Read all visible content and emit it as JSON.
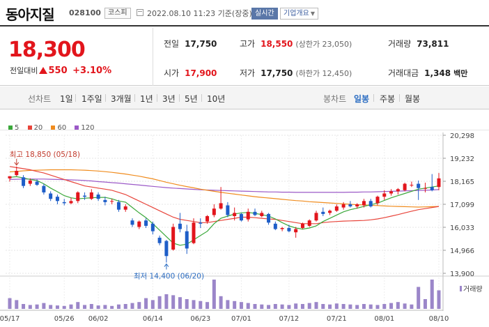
{
  "header": {
    "name": "동아지질",
    "code": "028100",
    "market": "코스피",
    "datetime": "2022.08.10 11:23 기준(장중)",
    "realtime_label": "실시간",
    "overview_label": "기업개요"
  },
  "price": {
    "current": "18,300",
    "change_label": "전일대비",
    "change": "550",
    "change_pct": "+3.10%",
    "prev_label": "전일",
    "prev": "17,750",
    "high_label": "고가",
    "high": "18,550",
    "upper_limit": "(상한가 23,050)",
    "volume_label": "거래량",
    "volume": "73,811",
    "open_label": "시가",
    "open": "17,900",
    "low_label": "저가",
    "low": "17,750",
    "lower_limit": "(하한가 12,450)",
    "value_label": "거래대금",
    "value": "1,348",
    "value_unit": "백만"
  },
  "periods": {
    "line_label": "선차트",
    "line_items": [
      "1일",
      "1주일",
      "3개월",
      "1년",
      "3년",
      "5년",
      "10년"
    ],
    "candle_label": "봉차트",
    "candle_items": [
      "일봉",
      "주봉",
      "월봉"
    ],
    "selected": "일봉"
  },
  "colors": {
    "up": "#e2151c",
    "down": "#1e5ec8",
    "ma5": "#3aa83a",
    "ma20": "#e8443a",
    "ma60": "#f08c1e",
    "ma120": "#9b59c7",
    "volume": "#9b86c9"
  },
  "chart_data": {
    "type": "candlestick",
    "legend": [
      "5",
      "20",
      "60",
      "120"
    ],
    "y_ticks": [
      20298,
      19232,
      18165,
      17099,
      16033,
      14966,
      13900
    ],
    "ylim": [
      13900,
      20298
    ],
    "x_ticks": [
      "05/17",
      "05/26",
      "06/02",
      "06/14",
      "06/23",
      "07/01",
      "07/12",
      "07/21",
      "08/01",
      "08/10"
    ],
    "annotations": {
      "high": "최고 18,850 (05/18)",
      "low": "최저 14,400 (06/20)"
    },
    "volume_label": "거래량",
    "candles": [
      {
        "o": 18300,
        "h": 18400,
        "l": 18150,
        "c": 18400
      },
      {
        "o": 18450,
        "h": 18850,
        "l": 18400,
        "c": 18650
      },
      {
        "o": 18350,
        "h": 18450,
        "l": 17850,
        "c": 17950
      },
      {
        "o": 18050,
        "h": 18300,
        "l": 17950,
        "c": 18200
      },
      {
        "o": 18150,
        "h": 18250,
        "l": 17950,
        "c": 18000
      },
      {
        "o": 17950,
        "h": 18050,
        "l": 17550,
        "c": 17650
      },
      {
        "o": 17600,
        "h": 17700,
        "l": 17250,
        "c": 17350
      },
      {
        "o": 17450,
        "h": 17550,
        "l": 17100,
        "c": 17250
      },
      {
        "o": 17200,
        "h": 17350,
        "l": 17050,
        "c": 17150
      },
      {
        "o": 17150,
        "h": 17400,
        "l": 17100,
        "c": 17250
      },
      {
        "o": 17250,
        "h": 17700,
        "l": 17150,
        "c": 17650
      },
      {
        "o": 17500,
        "h": 17650,
        "l": 17300,
        "c": 17450
      },
      {
        "o": 17350,
        "h": 17800,
        "l": 17300,
        "c": 17650
      },
      {
        "o": 17550,
        "h": 17650,
        "l": 17250,
        "c": 17350
      },
      {
        "o": 17300,
        "h": 17450,
        "l": 17050,
        "c": 17200
      },
      {
        "o": 17250,
        "h": 17350,
        "l": 17100,
        "c": 17250
      },
      {
        "o": 17200,
        "h": 17300,
        "l": 16750,
        "c": 16850
      },
      {
        "o": 16850,
        "h": 17100,
        "l": 16750,
        "c": 17000
      },
      {
        "o": 16350,
        "h": 16450,
        "l": 16050,
        "c": 16150
      },
      {
        "o": 16050,
        "h": 16350,
        "l": 15950,
        "c": 16300
      },
      {
        "o": 16350,
        "h": 16450,
        "l": 16000,
        "c": 16100
      },
      {
        "o": 16200,
        "h": 16300,
        "l": 15700,
        "c": 15850
      },
      {
        "o": 15550,
        "h": 15650,
        "l": 15200,
        "c": 15300
      },
      {
        "o": 15400,
        "h": 15450,
        "l": 14400,
        "c": 14700
      },
      {
        "o": 15000,
        "h": 16200,
        "l": 14950,
        "c": 16050
      },
      {
        "o": 16200,
        "h": 16700,
        "l": 15800,
        "c": 15950
      },
      {
        "o": 15850,
        "h": 16150,
        "l": 14800,
        "c": 15050
      },
      {
        "o": 15300,
        "h": 16450,
        "l": 15250,
        "c": 16250
      },
      {
        "o": 16250,
        "h": 16450,
        "l": 16000,
        "c": 16200
      },
      {
        "o": 16300,
        "h": 16600,
        "l": 16200,
        "c": 16550
      },
      {
        "o": 16600,
        "h": 17100,
        "l": 16500,
        "c": 16900
      },
      {
        "o": 16900,
        "h": 17900,
        "l": 16850,
        "c": 17150
      },
      {
        "o": 17050,
        "h": 17200,
        "l": 16500,
        "c": 16600
      },
      {
        "o": 16550,
        "h": 16950,
        "l": 16350,
        "c": 16700
      },
      {
        "o": 16650,
        "h": 16700,
        "l": 16300,
        "c": 16350
      },
      {
        "o": 16400,
        "h": 16900,
        "l": 16300,
        "c": 16750
      },
      {
        "o": 16750,
        "h": 16900,
        "l": 16550,
        "c": 16600
      },
      {
        "o": 16550,
        "h": 16800,
        "l": 16500,
        "c": 16700
      },
      {
        "o": 16650,
        "h": 16700,
        "l": 16150,
        "c": 16250
      },
      {
        "o": 16200,
        "h": 16300,
        "l": 15900,
        "c": 15950
      },
      {
        "o": 15950,
        "h": 16050,
        "l": 15850,
        "c": 16000
      },
      {
        "o": 16000,
        "h": 16150,
        "l": 15800,
        "c": 15850
      },
      {
        "o": 15800,
        "h": 16050,
        "l": 15550,
        "c": 15950
      },
      {
        "o": 16000,
        "h": 16250,
        "l": 15950,
        "c": 16200
      },
      {
        "o": 16100,
        "h": 16400,
        "l": 16050,
        "c": 16350
      },
      {
        "o": 16350,
        "h": 16800,
        "l": 16300,
        "c": 16700
      },
      {
        "o": 16750,
        "h": 16950,
        "l": 16550,
        "c": 16650
      },
      {
        "o": 16700,
        "h": 16850,
        "l": 16600,
        "c": 16800
      },
      {
        "o": 16800,
        "h": 17100,
        "l": 16750,
        "c": 17000
      },
      {
        "o": 16950,
        "h": 17200,
        "l": 16850,
        "c": 17100
      },
      {
        "o": 17100,
        "h": 17250,
        "l": 16950,
        "c": 17000
      },
      {
        "o": 17000,
        "h": 17150,
        "l": 16900,
        "c": 17100
      },
      {
        "o": 17050,
        "h": 17350,
        "l": 16950,
        "c": 17250
      },
      {
        "o": 17250,
        "h": 17350,
        "l": 16950,
        "c": 17000
      },
      {
        "o": 17150,
        "h": 17500,
        "l": 17050,
        "c": 17450
      },
      {
        "o": 17450,
        "h": 17750,
        "l": 17300,
        "c": 17600
      },
      {
        "o": 17600,
        "h": 17800,
        "l": 17500,
        "c": 17700
      },
      {
        "o": 17700,
        "h": 17850,
        "l": 17550,
        "c": 17800
      },
      {
        "o": 17750,
        "h": 18100,
        "l": 17700,
        "c": 18050
      },
      {
        "o": 18000,
        "h": 18150,
        "l": 17900,
        "c": 18000
      },
      {
        "o": 18050,
        "h": 18200,
        "l": 17300,
        "c": 17850
      },
      {
        "o": 17850,
        "h": 18100,
        "l": 17650,
        "c": 17850
      },
      {
        "o": 17900,
        "h": 18500,
        "l": 17700,
        "c": 17750
      },
      {
        "o": 17900,
        "h": 18550,
        "l": 17750,
        "c": 18300
      }
    ],
    "ma": {
      "ma5": [
        18350,
        18380,
        18320,
        18250,
        18200,
        18050,
        17850,
        17680,
        17500,
        17400,
        17350,
        17380,
        17400,
        17420,
        17420,
        17350,
        17250,
        17200,
        16950,
        16700,
        16480,
        16200,
        15900,
        15600,
        15300,
        15200,
        15250,
        15450,
        15650,
        15850,
        16200,
        16450,
        16550,
        16650,
        16700,
        16720,
        16680,
        16620,
        16550,
        16420,
        16250,
        16100,
        16000,
        15950,
        16000,
        16100,
        16300,
        16450,
        16600,
        16750,
        16850,
        16920,
        17000,
        17080,
        17150,
        17280,
        17400,
        17500,
        17600,
        17700,
        17800,
        17850,
        17900,
        17950
      ],
      "ma20": [
        18850,
        18800,
        18750,
        18700,
        18620,
        18550,
        18450,
        18350,
        18250,
        18150,
        18050,
        17950,
        17900,
        17850,
        17800,
        17750,
        17650,
        17550,
        17400,
        17250,
        17100,
        16950,
        16800,
        16650,
        16500,
        16400,
        16350,
        16300,
        16250,
        16250,
        16300,
        16350,
        16400,
        16450,
        16500,
        16500,
        16480,
        16450,
        16420,
        16400,
        16350,
        16300,
        16250,
        16200,
        16200,
        16200,
        16250,
        16280,
        16300,
        16320,
        16330,
        16340,
        16350,
        16380,
        16420,
        16480,
        16550,
        16620,
        16700,
        16780,
        16850,
        16900,
        16950,
        17000
      ],
      "ma60": [
        18600,
        18620,
        18650,
        18670,
        18680,
        18690,
        18700,
        18700,
        18700,
        18700,
        18690,
        18680,
        18660,
        18640,
        18610,
        18580,
        18540,
        18500,
        18450,
        18400,
        18340,
        18280,
        18200,
        18120,
        18050,
        17980,
        17920,
        17860,
        17800,
        17750,
        17700,
        17650,
        17610,
        17570,
        17530,
        17490,
        17450,
        17420,
        17390,
        17360,
        17330,
        17300,
        17270,
        17250,
        17220,
        17200,
        17180,
        17160,
        17140,
        17120,
        17100,
        17080,
        17070,
        17050,
        17040,
        17020,
        17010,
        17000,
        16990,
        16980,
        16970,
        16980,
        16990,
        17000
      ],
      "ma120": [
        18250,
        18260,
        18270,
        18270,
        18270,
        18270,
        18260,
        18250,
        18240,
        18230,
        18220,
        18200,
        18180,
        18150,
        18130,
        18100,
        18080,
        18050,
        18020,
        17990,
        17960,
        17930,
        17900,
        17870,
        17850,
        17830,
        17810,
        17790,
        17770,
        17760,
        17750,
        17740,
        17730,
        17720,
        17710,
        17700,
        17690,
        17680,
        17670,
        17670,
        17660,
        17660,
        17650,
        17650,
        17650,
        17650,
        17650,
        17650,
        17650,
        17650,
        17660,
        17660,
        17670,
        17670,
        17680,
        17690,
        17700,
        17710,
        17720,
        17730,
        17740,
        17750,
        17760,
        17780
      ]
    },
    "volume": [
      22,
      18,
      10,
      8,
      9,
      12,
      8,
      7,
      6,
      9,
      14,
      8,
      10,
      7,
      8,
      6,
      9,
      10,
      12,
      14,
      22,
      18,
      26,
      30,
      28,
      24,
      20,
      18,
      16,
      14,
      60,
      26,
      18,
      16,
      14,
      12,
      10,
      9,
      8,
      10,
      9,
      8,
      11,
      10,
      12,
      14,
      10,
      9,
      11,
      10,
      9,
      8,
      10,
      9,
      8,
      10,
      12,
      14,
      11,
      9,
      45,
      20,
      60,
      38
    ]
  }
}
